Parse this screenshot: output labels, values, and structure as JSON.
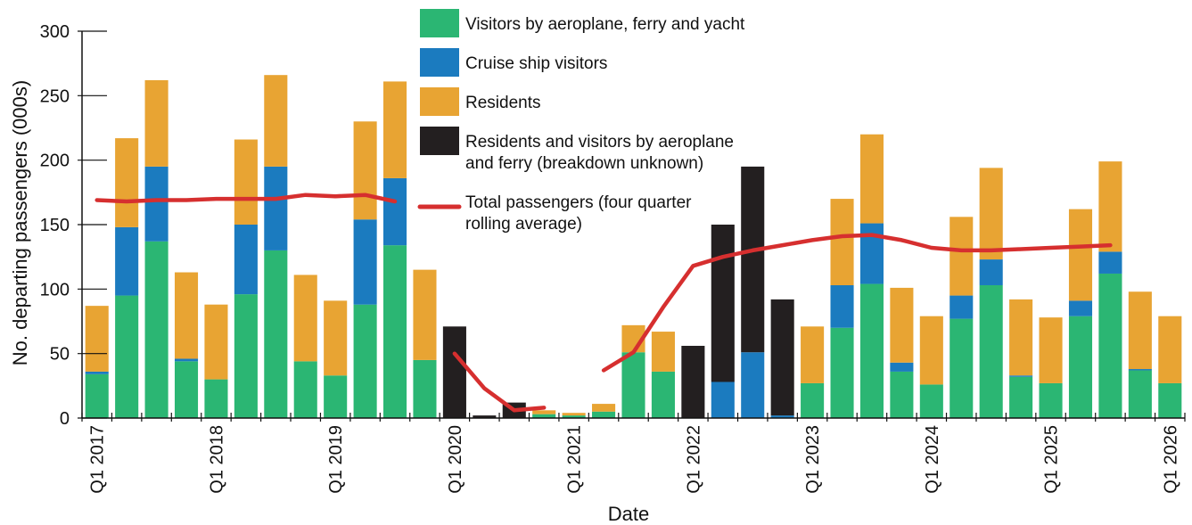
{
  "chart_data": {
    "type": "bar",
    "stacked": true,
    "xlabel": "Date",
    "ylabel": "No. departing passengers (000s)",
    "ylim": [
      0,
      300
    ],
    "yticks": [
      0,
      50,
      100,
      150,
      200,
      250,
      300
    ],
    "xtick_labels": [
      "Q1 2017",
      "Q1 2018",
      "Q1 2019",
      "Q1 2020",
      "Q1 2021",
      "Q1 2022",
      "Q1 2023",
      "Q1 2024",
      "Q1 2025",
      "Q1 2026"
    ],
    "categories": [
      "2017Q1",
      "2017Q2",
      "2017Q3",
      "2017Q4",
      "2018Q1",
      "2018Q2",
      "2018Q3",
      "2018Q4",
      "2019Q1",
      "2019Q2",
      "2019Q3",
      "2019Q4",
      "2020Q1",
      "2020Q2",
      "2020Q3",
      "2020Q4",
      "2021Q1",
      "2021Q2",
      "2021Q3",
      "2021Q4",
      "2022Q1",
      "2022Q2",
      "2022Q3",
      "2022Q4",
      "2023Q1",
      "2023Q2",
      "2023Q3",
      "2023Q4",
      "2024Q1",
      "2024Q2",
      "2024Q3",
      "2024Q4",
      "2025Q1",
      "2025Q2",
      "2025Q3",
      "2025Q4",
      "2026Q1"
    ],
    "series": [
      {
        "name": "Visitors by aeroplane, ferry and yacht",
        "color": "#2bb673",
        "kind": "bar",
        "values": [
          34,
          95,
          137,
          44,
          30,
          96,
          130,
          44,
          33,
          88,
          134,
          45,
          0,
          0,
          0,
          3,
          2,
          5,
          51,
          36,
          0,
          0,
          0,
          0,
          27,
          70,
          104,
          36,
          26,
          77,
          103,
          32,
          27,
          79,
          112,
          37,
          27
        ]
      },
      {
        "name": "Cruise ship visitors",
        "color": "#1b7bbf",
        "kind": "bar",
        "values": [
          2,
          53,
          58,
          2,
          0,
          54,
          65,
          0,
          0,
          66,
          52,
          0,
          0,
          0,
          0,
          0,
          0,
          0,
          0,
          0,
          0,
          28,
          51,
          2,
          0,
          33,
          47,
          7,
          0,
          18,
          20,
          1,
          0,
          12,
          17,
          1,
          0
        ]
      },
      {
        "name": "Residents",
        "color": "#e8a433",
        "kind": "bar",
        "values": [
          51,
          69,
          67,
          67,
          58,
          66,
          71,
          67,
          58,
          76,
          75,
          70,
          0,
          0,
          0,
          3,
          2,
          6,
          21,
          31,
          0,
          0,
          0,
          0,
          44,
          67,
          69,
          58,
          53,
          61,
          71,
          59,
          51,
          71,
          70,
          60,
          52
        ]
      },
      {
        "name": "Residents and visitors by aeroplane and ferry (breakdown unknown)",
        "color": "#231f20",
        "kind": "bar",
        "values": [
          0,
          0,
          0,
          0,
          0,
          0,
          0,
          0,
          0,
          0,
          0,
          0,
          71,
          2,
          12,
          0,
          0,
          0,
          0,
          0,
          56,
          122,
          144,
          90,
          0,
          0,
          0,
          0,
          0,
          0,
          0,
          0,
          0,
          0,
          0,
          0,
          0
        ]
      },
      {
        "name": "Total passengers (four quarter rolling average)",
        "color": "#d62f2f",
        "kind": "line",
        "values": [
          169,
          168,
          169,
          169,
          170,
          170,
          170,
          173,
          172,
          173,
          168,
          null,
          50,
          23,
          6,
          8,
          null,
          37,
          51,
          86,
          118,
          125,
          130,
          134,
          138,
          141,
          142,
          138,
          132,
          130,
          130,
          131,
          132,
          133,
          134,
          null,
          null
        ]
      }
    ],
    "legend_position": "top-center",
    "grid": false
  }
}
